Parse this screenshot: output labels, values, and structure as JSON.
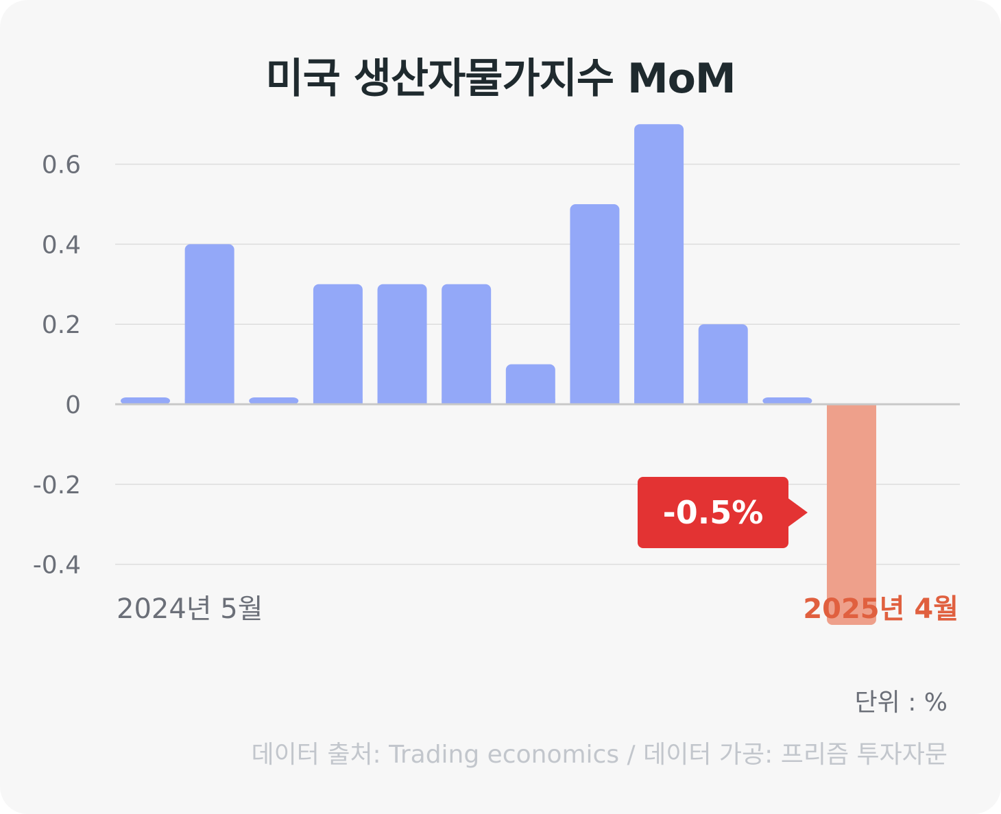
{
  "chart_data": {
    "type": "bar",
    "title": "미국 생산자물가지수 MoM",
    "categories": [
      "2024-05",
      "2024-06",
      "2024-07",
      "2024-08",
      "2024-09",
      "2024-10",
      "2024-11",
      "2024-12",
      "2025-01",
      "2025-02",
      "2025-03",
      "2025-04"
    ],
    "values": [
      0.0,
      0.4,
      0.0,
      0.3,
      0.3,
      0.3,
      0.1,
      0.5,
      0.7,
      0.2,
      0.0,
      -0.5
    ],
    "x_labels": {
      "first": "2024년 5월",
      "last": "2025년 4월"
    },
    "y_ticks": [
      "0.6",
      "0.4",
      "0.2",
      "0",
      "-0.2",
      "-0.4"
    ],
    "ylim": [
      -0.45,
      0.7
    ],
    "grid": true,
    "callout": "-0.5%",
    "unit": "단위 : %",
    "source": "데이터 출처: Trading economics / 데이터 가공: 프리즘 투자자문",
    "colors": {
      "positive_bar": "#93a8f8",
      "negative_bar": "#eea08b",
      "highlight_label": "#e0603f",
      "callout_bg": "#e33333",
      "grid": "#dddddd",
      "zero_line": "#c8c8c8",
      "tick_text": "#6b6f78"
    }
  }
}
